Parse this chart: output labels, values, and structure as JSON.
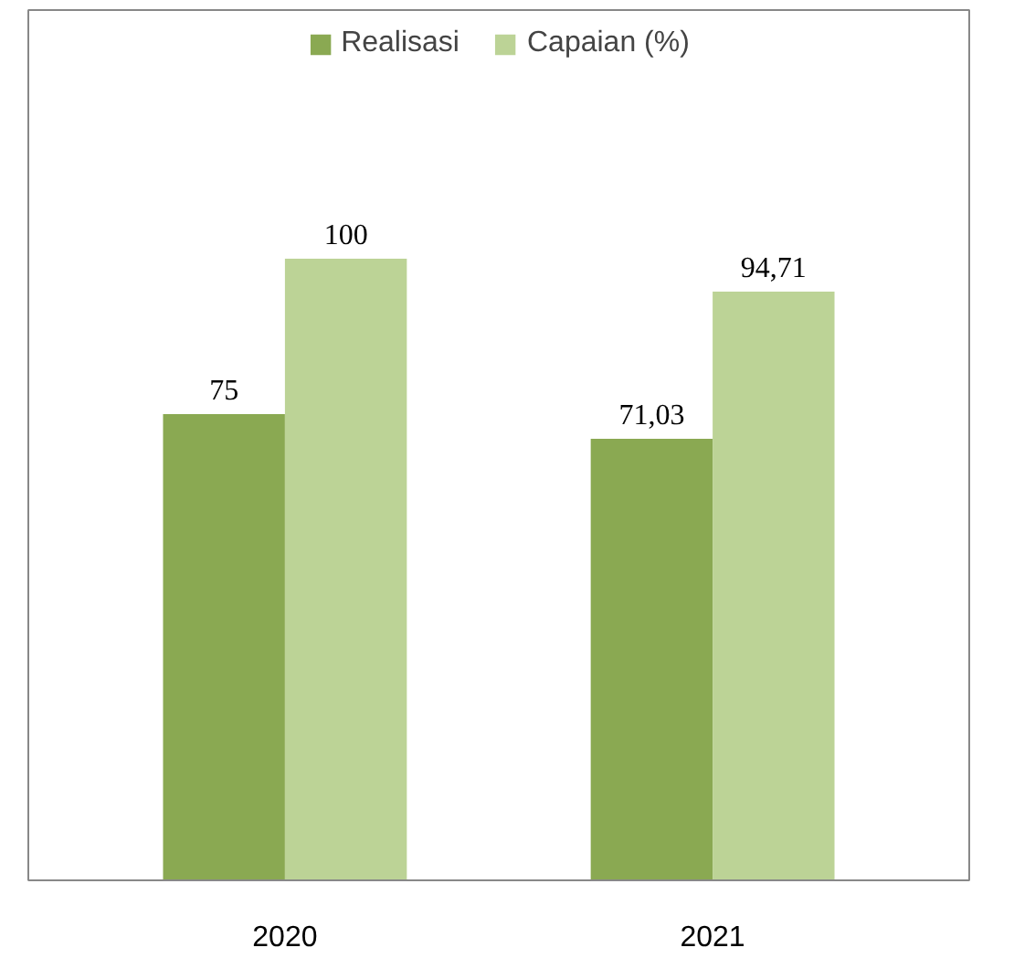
{
  "chart_data": {
    "type": "bar",
    "categories": [
      "2020",
      "2021"
    ],
    "ylim": [
      0,
      140
    ],
    "tick_labels": "x",
    "grid": false,
    "legend": "top",
    "series": [
      {
        "name": "Realisasi",
        "color": "#8aa952",
        "values": [
          75,
          71.03
        ],
        "value_labels": [
          "75",
          "71,03"
        ]
      },
      {
        "name": "Capaian (%)",
        "color": "#bcd396",
        "values": [
          100,
          94.71
        ],
        "value_labels": [
          "100",
          "94,71"
        ]
      }
    ]
  }
}
